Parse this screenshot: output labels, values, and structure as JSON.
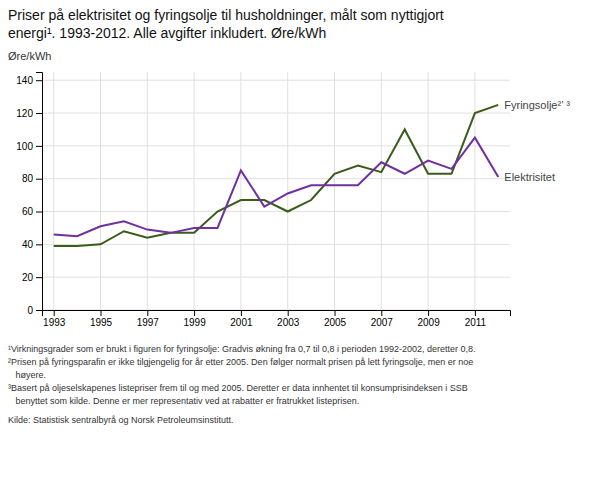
{
  "chart_data": {
    "type": "line",
    "title": [
      "Priser på elektrisitet og fyringsolje til husholdninger, målt som nyttigjort",
      "energi¹. 1993-2012. Alle avgifter inkludert. Øre/kWh"
    ],
    "ylabel": "Øre/kWh",
    "x": [
      1993,
      1994,
      1995,
      1996,
      1997,
      1998,
      1999,
      2000,
      2001,
      2002,
      2003,
      2004,
      2005,
      2006,
      2007,
      2008,
      2009,
      2010,
      2011,
      2012
    ],
    "series": [
      {
        "name": "Fyringsolje²’ ³",
        "color": "#3a5c1a",
        "values": [
          39,
          39,
          40,
          48,
          44,
          47,
          47,
          60,
          67,
          67,
          60,
          67,
          83,
          88,
          84,
          110,
          83,
          83,
          120,
          125
        ]
      },
      {
        "name": "Elektrisitet",
        "color": "#7030a0",
        "values": [
          46,
          45,
          51,
          54,
          49,
          47,
          50,
          50,
          85,
          63,
          71,
          76,
          76,
          76,
          90,
          83,
          91,
          86,
          105,
          81
        ]
      }
    ],
    "xlim": [
      1992.5,
      2012.5
    ],
    "xticks": [
      1993,
      1995,
      1997,
      1999,
      2001,
      2003,
      2005,
      2007,
      2009,
      2011
    ],
    "ylim": [
      0,
      145
    ],
    "yticks": [
      0,
      20,
      40,
      60,
      80,
      100,
      120,
      140
    ],
    "grid": true,
    "footnotes": [
      "¹Virkningsgrader som er brukt i figuren for fyringsolje: Gradvis økning fra 0,7 til 0,8 i perioden 1992-2002, deretter 0,8.",
      "²Prisen på fyringsparafin er ikke tilgjengelig for år etter 2005. Den følger normalt prisen på lett fyringsolje, men er noe",
      "   høyere.",
      "³Basert på oljeselskapenes listepriser frem til og med 2005. Deretter er data innhentet til konsumprisindeksen i SSB",
      "   benyttet som kilde. Denne er mer representativ ved at rabatter er fratrukket listeprisen."
    ],
    "source": "Kilde: Statistisk sentralbyrå og Norsk Petroleumsinstitutt."
  }
}
